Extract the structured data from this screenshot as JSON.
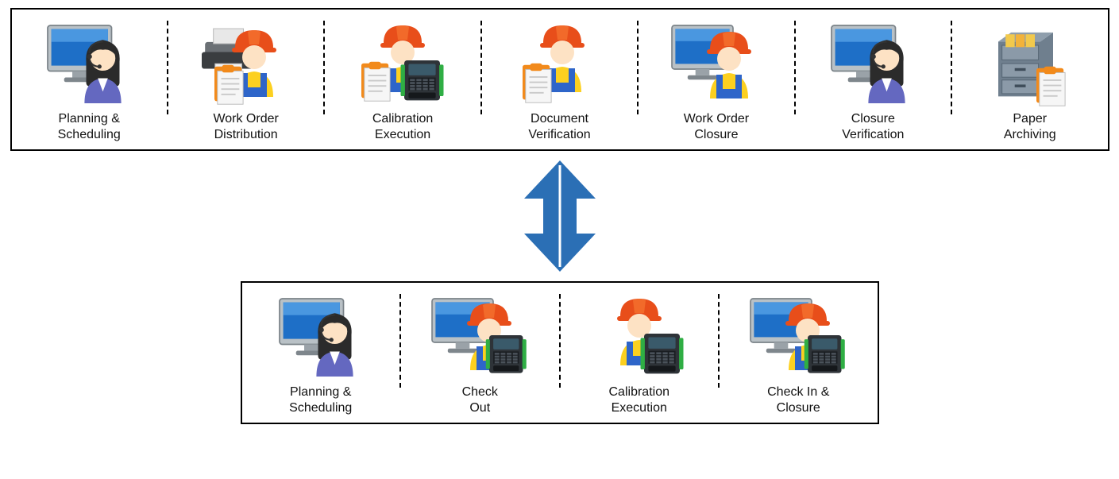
{
  "colors": {
    "arrow": "#2b6fb5",
    "border": "#000000",
    "helmet": "#e84e1a",
    "shirt": "#fcd020",
    "overalls": "#2e65c9",
    "skin": "#fde2c4",
    "monitorFrame": "#b9c1c6",
    "monitorScreen": "#1e6fc7",
    "hair": "#2b2b2b",
    "suit": "#6468c0",
    "deviceBody": "#2e3338",
    "deviceGreen": "#2fae44",
    "docClip": "#f28a1b",
    "docPaper": "#f6f6f6",
    "docLine": "#c9c9c9",
    "printerDark": "#3a3d40",
    "printerMid": "#6b7075",
    "cabinet": "#6f7f8e",
    "cabinetDrawer": "#8b9aa8",
    "folder": "#f2c94c"
  },
  "topRow": {
    "steps": [
      {
        "icon": "operator-monitor",
        "label": "Planning &\nScheduling"
      },
      {
        "icon": "worker-printer",
        "label": "Work Order\nDistribution"
      },
      {
        "icon": "worker-device-doc",
        "label": "Calibration\nExecution"
      },
      {
        "icon": "worker-doc",
        "label": "Document\nVerification"
      },
      {
        "icon": "worker-monitor",
        "label": "Work Order\nClosure"
      },
      {
        "icon": "operator-monitor",
        "label": "Closure\nVerification"
      },
      {
        "icon": "cabinet-doc",
        "label": "Paper\nArchiving"
      }
    ]
  },
  "bottomRow": {
    "steps": [
      {
        "icon": "operator-monitor",
        "label": "Planning &\nScheduling"
      },
      {
        "icon": "worker-monitor-device",
        "label": "Check\nOut"
      },
      {
        "icon": "worker-device",
        "label": "Calibration\nExecution"
      },
      {
        "icon": "worker-monitor-device",
        "label": "Check In &\nClosure"
      }
    ]
  },
  "arrow": {
    "width": 110,
    "height": 140
  }
}
